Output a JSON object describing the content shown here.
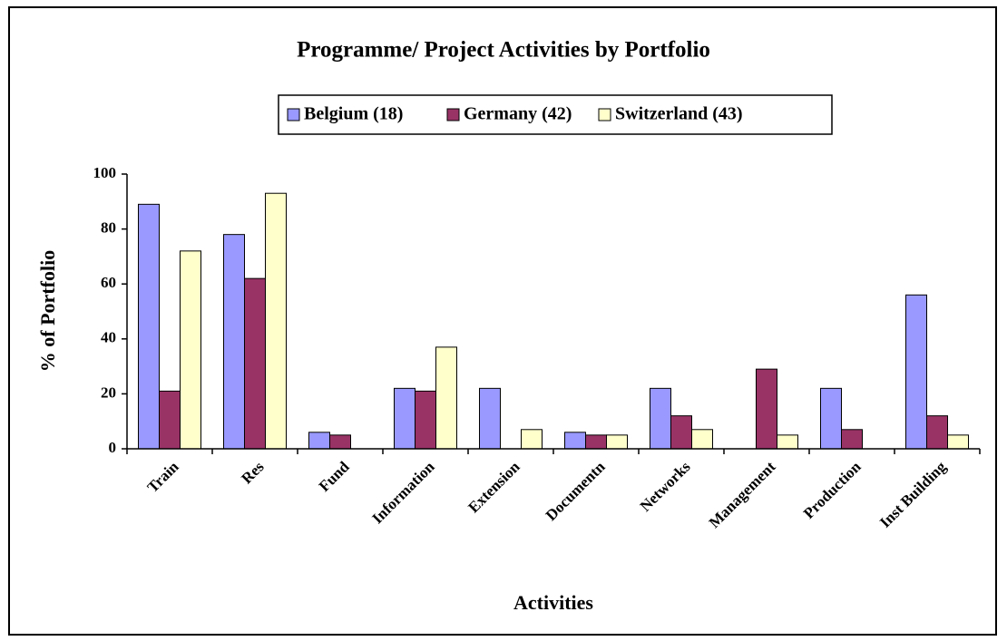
{
  "chart_data": {
    "type": "bar",
    "title": "Programme/ Project Activities by Portfolio",
    "x_label": "Activities",
    "y_label": "% of Portfolio",
    "categories": [
      "Train",
      "Res",
      "Fund",
      "Information",
      "Extension",
      "Documentn",
      "Networks",
      "Management",
      "Production",
      "Inst Building"
    ],
    "series": [
      {
        "name": "Belgium (18)",
        "color": "#9999ff",
        "values": [
          89,
          78,
          6,
          22,
          22,
          6,
          22,
          0,
          22,
          56
        ]
      },
      {
        "name": "Germany (42)",
        "color": "#993366",
        "values": [
          21,
          62,
          5,
          21,
          0,
          5,
          12,
          29,
          7,
          12
        ]
      },
      {
        "name": "Switzerland (43)",
        "color": "#ffffcc",
        "values": [
          72,
          93,
          0,
          37,
          7,
          5,
          7,
          5,
          0,
          5
        ]
      }
    ],
    "ylim": [
      0,
      100
    ],
    "yticks": [
      0,
      20,
      40,
      60,
      80,
      100
    ],
    "legend": "top"
  }
}
